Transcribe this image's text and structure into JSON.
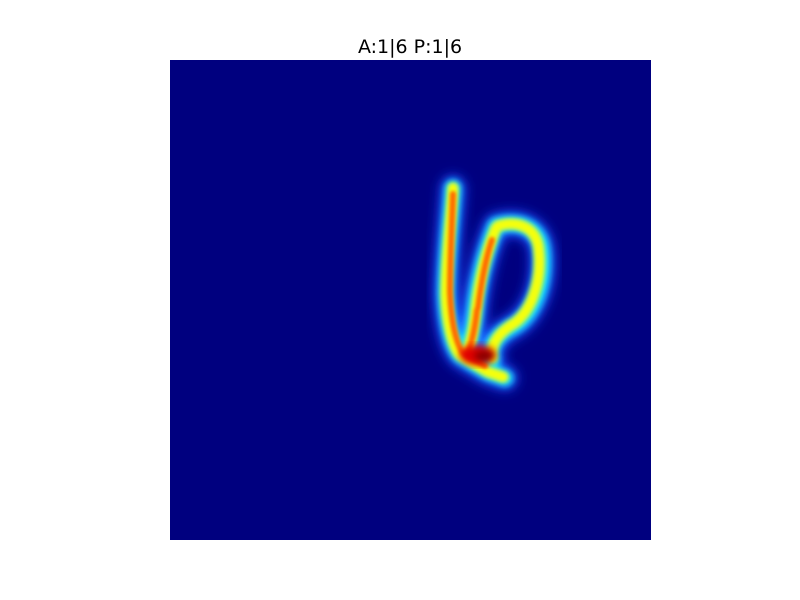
{
  "figure": {
    "title": "A:1|6 P:1|6"
  },
  "image": {
    "description_colormap": "jet",
    "background_color": "#00007f"
  }
}
